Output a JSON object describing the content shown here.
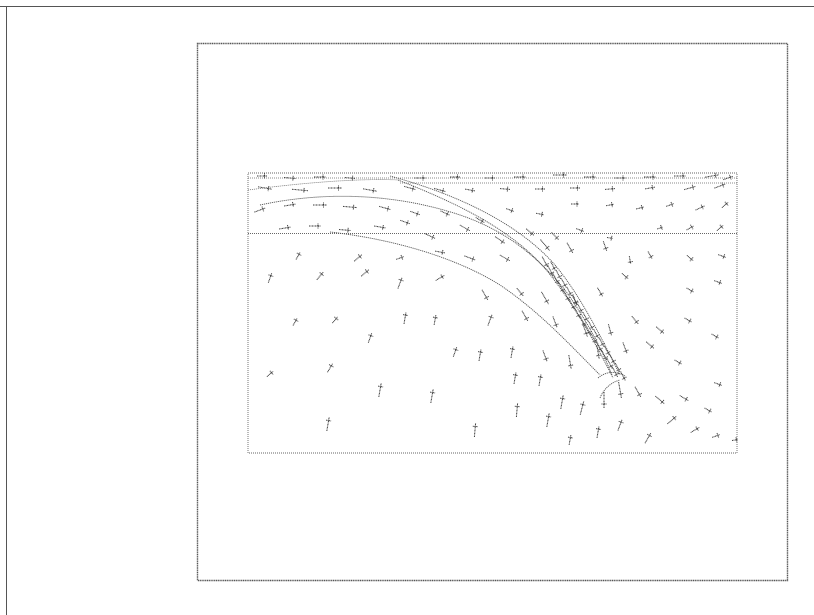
{
  "figure": {
    "description_visible_text": "",
    "colors": {
      "ink": "#4a4a4a",
      "frame": "#555555",
      "background": "#ffffff"
    }
  }
}
